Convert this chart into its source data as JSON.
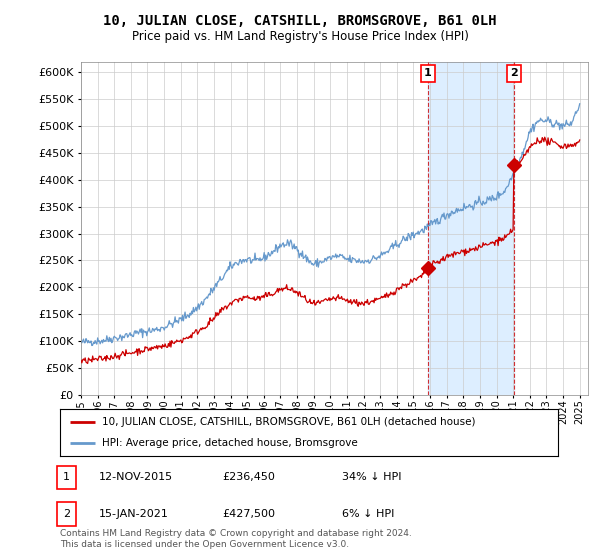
{
  "title": "10, JULIAN CLOSE, CATSHILL, BROMSGROVE, B61 0LH",
  "subtitle": "Price paid vs. HM Land Registry's House Price Index (HPI)",
  "ylim": [
    0,
    620000
  ],
  "yticks": [
    0,
    50000,
    100000,
    150000,
    200000,
    250000,
    300000,
    350000,
    400000,
    450000,
    500000,
    550000,
    600000
  ],
  "x_start_year": 1995,
  "x_end_year": 2025,
  "legend_line1": "10, JULIAN CLOSE, CATSHILL, BROMSGROVE, B61 0LH (detached house)",
  "legend_line2": "HPI: Average price, detached house, Bromsgrove",
  "annotation1_date": "12-NOV-2015",
  "annotation1_price": "£236,450",
  "annotation1_hpi": "34% ↓ HPI",
  "annotation1_year": 2015.87,
  "annotation1_value": 236450,
  "annotation2_date": "15-JAN-2021",
  "annotation2_price": "£427,500",
  "annotation2_hpi": "6% ↓ HPI",
  "annotation2_year": 2021.04,
  "annotation2_value": 427500,
  "hpi_color": "#6699cc",
  "price_color": "#cc0000",
  "shade_color": "#ddeeff",
  "footer": "Contains HM Land Registry data © Crown copyright and database right 2024.\nThis data is licensed under the Open Government Licence v3.0.",
  "background_color": "#ffffff",
  "grid_color": "#cccccc"
}
